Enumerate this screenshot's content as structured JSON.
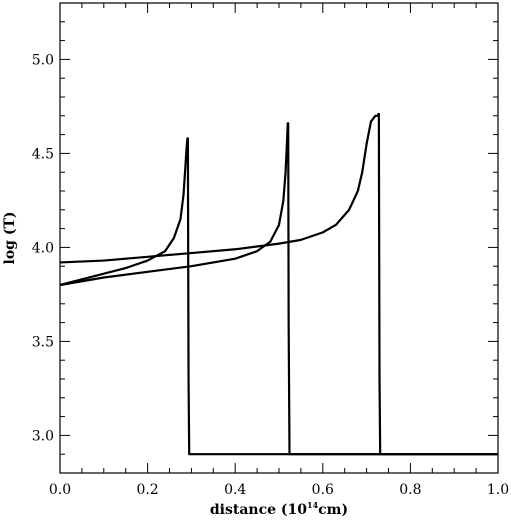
{
  "chart_data": {
    "type": "line",
    "title": "",
    "xlabel": "distance (10",
    "xlabel_sup": "14",
    "xlabel_suffix": "cm)",
    "ylabel": "log (T)",
    "xlim": [
      0.0,
      1.0
    ],
    "ylim": [
      2.8,
      5.3
    ],
    "x_ticks": [
      0.0,
      0.2,
      0.4,
      0.6,
      0.8,
      1.0
    ],
    "x_tick_labels": [
      "0.0",
      "0.2",
      "0.4",
      "0.6",
      "0.8",
      "1.0"
    ],
    "y_ticks": [
      3.0,
      3.5,
      4.0,
      4.5,
      5.0
    ],
    "y_tick_labels": [
      "3.0",
      "3.5",
      "4.0",
      "4.5",
      "5.0"
    ],
    "grid": false,
    "legend": "none",
    "series": [
      {
        "x": [
          0.0,
          0.05,
          0.1,
          0.15,
          0.2,
          0.24,
          0.26,
          0.275,
          0.282,
          0.286,
          0.289,
          0.291,
          0.292,
          0.2925,
          0.2935,
          0.295,
          0.297,
          1.0
        ],
        "y": [
          3.8,
          3.83,
          3.86,
          3.89,
          3.93,
          3.98,
          4.05,
          4.15,
          4.28,
          4.42,
          4.53,
          4.58,
          4.58,
          4.1,
          3.3,
          2.9,
          2.9,
          2.9
        ]
      },
      {
        "x": [
          0.0,
          0.1,
          0.2,
          0.3,
          0.35,
          0.4,
          0.45,
          0.48,
          0.5,
          0.51,
          0.515,
          0.518,
          0.52,
          0.521,
          0.522,
          0.524,
          0.526,
          1.0
        ],
        "y": [
          3.8,
          3.84,
          3.87,
          3.9,
          3.92,
          3.94,
          3.98,
          4.03,
          4.12,
          4.25,
          4.4,
          4.55,
          4.66,
          4.66,
          3.6,
          2.9,
          2.9,
          2.9
        ]
      },
      {
        "x": [
          0.0,
          0.1,
          0.2,
          0.3,
          0.4,
          0.5,
          0.55,
          0.6,
          0.63,
          0.66,
          0.68,
          0.69,
          0.7,
          0.71,
          0.72,
          0.725,
          0.727,
          0.728,
          0.7285,
          0.7295,
          0.731,
          1.0
        ],
        "y": [
          3.92,
          3.93,
          3.95,
          3.97,
          3.99,
          4.02,
          4.04,
          4.08,
          4.12,
          4.2,
          4.3,
          4.4,
          4.55,
          4.67,
          4.7,
          4.7,
          4.71,
          4.71,
          4.2,
          3.3,
          2.9,
          2.9
        ]
      }
    ]
  }
}
